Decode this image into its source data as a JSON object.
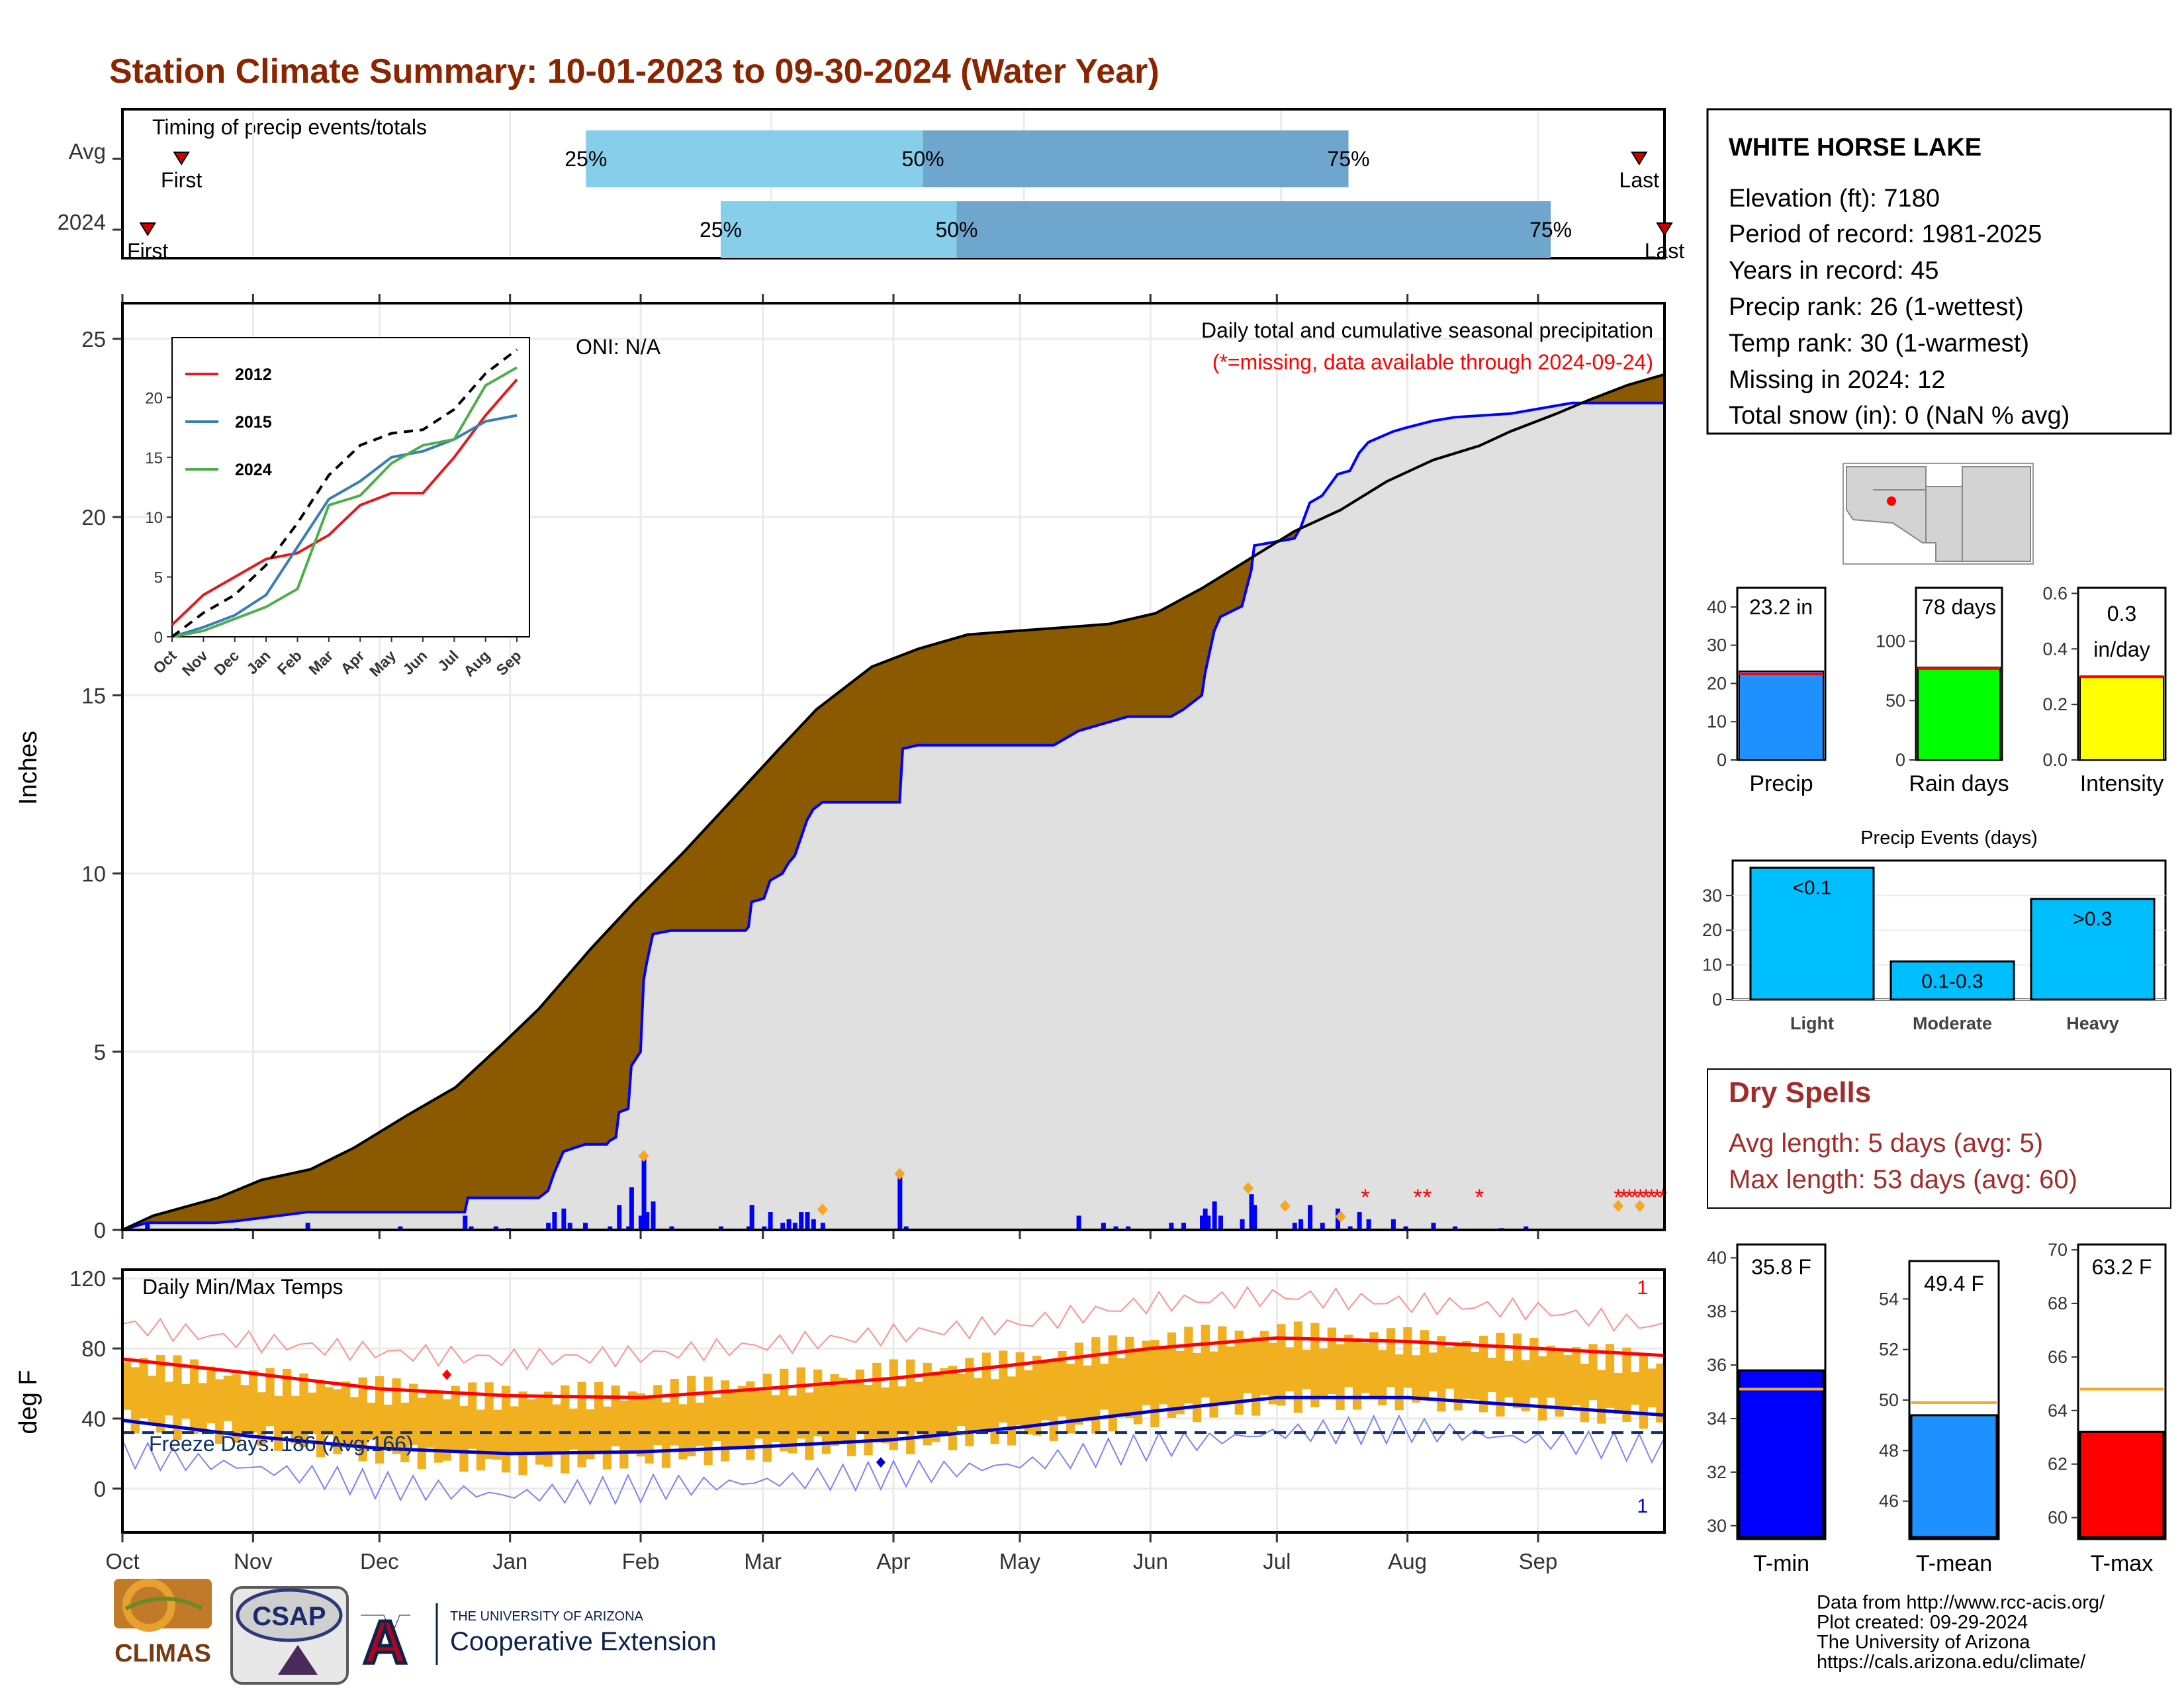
{
  "title": "Station Climate Summary: 10-01-2023 to 09-30-2024 (Water Year)",
  "colors": {
    "title": "#8B2500",
    "brown": "#8B5A00",
    "green": "#1a8c1a",
    "blue": "#0000ff",
    "missing": "#ff0000",
    "grey": "#e0e0e0",
    "orange": "#f0b020",
    "q1": "#87ceeb",
    "q2": "#6fa6cd"
  },
  "months": [
    "Oct",
    "Nov",
    "Dec",
    "Jan",
    "Feb",
    "Mar",
    "Apr",
    "May",
    "Jun",
    "Jul",
    "Aug",
    "Sep"
  ],
  "timing": {
    "label": "Timing of precip events/totals",
    "rows": [
      {
        "label": "Avg",
        "first_day": 14,
        "p25": 110,
        "p50": 190,
        "p75": 291,
        "last_day": 360
      },
      {
        "label": "2024",
        "first_day": 6,
        "p25": 142,
        "p50": 198,
        "p75": 339,
        "last_day": 366
      }
    ],
    "first_text": "First",
    "last_text": "Last",
    "pct_labels": [
      "25%",
      "50%",
      "75%"
    ]
  },
  "station": {
    "name": "WHITE HORSE LAKE",
    "lines": [
      "Elevation (ft): 7180",
      "Period of record: 1981-2025",
      "Years in record: 45",
      "Precip rank: 26 (1-wettest)",
      "Temp rank: 30 (1-warmest)",
      "Missing in 2024: 12",
      "Total snow (in): 0 (NaN % avg)"
    ]
  },
  "dry_spells": {
    "title": "Dry Spells",
    "avg": "Avg length: 5 days (avg: 5)",
    "max": "Max length: 53 days (avg: 60)"
  },
  "credits": {
    "lines": [
      "Data from http://www.rcc-acis.org/",
      "Plot created: 09-29-2024",
      "The University of Arizona",
      "https://cals.arizona.edu/climate/"
    ],
    "logo_climas": "CLIMAS",
    "logo_csap": "CSAP",
    "logo_ua_top": "THE UNIVERSITY OF ARIZONA",
    "logo_ua_bottom": "Cooperative Extension"
  },
  "chart_data": [
    {
      "id": "cumulative-precip",
      "type": "area",
      "title": "Daily total and cumulative seasonal precipitation",
      "subtitle": "(*=missing, data available through 2024-09-24)",
      "oni": "ONI: N/A",
      "ylabel": "Inches",
      "ylim": [
        0,
        26
      ],
      "yticks": [
        0,
        5,
        10,
        15,
        20,
        25
      ],
      "avg_cumulative": [
        [
          0,
          0
        ],
        [
          10,
          0.4
        ],
        [
          31,
          0.9
        ],
        [
          45,
          1.4
        ],
        [
          61,
          1.7
        ],
        [
          75,
          2.3
        ],
        [
          92,
          3.2
        ],
        [
          108,
          4.0
        ],
        [
          123,
          5.2
        ],
        [
          135,
          6.2
        ],
        [
          152,
          7.9
        ],
        [
          166,
          9.2
        ],
        [
          182,
          10.6
        ],
        [
          197,
          12.0
        ],
        [
          213,
          13.5
        ],
        [
          225,
          14.6
        ],
        [
          243,
          15.8
        ],
        [
          258,
          16.3
        ],
        [
          274,
          16.7
        ],
        [
          289,
          16.8
        ],
        [
          305,
          16.9
        ],
        [
          320,
          17.0
        ],
        [
          335,
          17.3
        ],
        [
          350,
          18.0
        ],
        [
          365,
          18.8
        ],
        [
          380,
          19.6
        ],
        [
          395,
          20.2
        ],
        [
          410,
          21.0
        ],
        [
          425,
          21.6
        ],
        [
          440,
          22.0
        ],
        [
          450,
          22.4
        ],
        [
          465,
          22.9
        ],
        [
          476,
          23.3
        ],
        [
          488,
          23.7
        ],
        [
          500,
          24.0
        ]
      ],
      "obs_cumulative": [
        [
          0,
          0
        ],
        [
          8,
          0.2
        ],
        [
          30,
          0.2
        ],
        [
          37,
          0.25
        ],
        [
          60,
          0.5
        ],
        [
          90,
          0.5
        ],
        [
          111,
          0.5
        ],
        [
          112,
          0.9
        ],
        [
          135,
          0.9
        ],
        [
          138,
          1.1
        ],
        [
          140,
          1.6
        ],
        [
          143,
          2.2
        ],
        [
          150,
          2.4
        ],
        [
          157,
          2.4
        ],
        [
          158,
          2.5
        ],
        [
          160,
          2.6
        ],
        [
          161,
          3.3
        ],
        [
          164,
          3.4
        ],
        [
          165,
          4.6
        ],
        [
          168,
          5.0
        ],
        [
          169,
          7.0
        ],
        [
          170,
          7.5
        ],
        [
          172,
          8.3
        ],
        [
          178,
          8.4
        ],
        [
          191,
          8.4
        ],
        [
          202,
          8.4
        ],
        [
          203,
          8.5
        ],
        [
          204,
          9.2
        ],
        [
          208,
          9.3
        ],
        [
          210,
          9.8
        ],
        [
          214,
          10.0
        ],
        [
          216,
          10.3
        ],
        [
          218,
          10.5
        ],
        [
          220,
          11.0
        ],
        [
          222,
          11.5
        ],
        [
          224,
          11.8
        ],
        [
          227,
          12.0
        ],
        [
          252,
          12.0
        ],
        [
          253,
          13.5
        ],
        [
          258,
          13.6
        ],
        [
          302,
          13.6
        ],
        [
          310,
          14.0
        ],
        [
          318,
          14.2
        ],
        [
          322,
          14.3
        ],
        [
          326,
          14.4
        ],
        [
          340,
          14.4
        ],
        [
          344,
          14.6
        ],
        [
          350,
          15.0
        ],
        [
          351,
          15.6
        ],
        [
          352,
          16.0
        ],
        [
          354,
          16.8
        ],
        [
          356,
          17.2
        ],
        [
          363,
          17.5
        ],
        [
          366,
          18.5
        ],
        [
          367,
          19.2
        ],
        [
          380,
          19.4
        ],
        [
          382,
          19.7
        ],
        [
          385,
          20.4
        ],
        [
          389,
          20.6
        ],
        [
          394,
          21.2
        ],
        [
          398,
          21.3
        ],
        [
          401,
          21.8
        ],
        [
          404,
          22.1
        ],
        [
          412,
          22.4
        ],
        [
          416,
          22.5
        ],
        [
          425,
          22.7
        ],
        [
          432,
          22.8
        ],
        [
          450,
          22.9
        ],
        [
          470,
          23.2
        ],
        [
          500,
          23.2
        ],
        [
          500,
          22.9
        ]
      ],
      "daily_precip": [
        [
          8,
          0.2
        ],
        [
          37,
          0.05
        ],
        [
          60,
          0.2
        ],
        [
          90,
          0.1
        ],
        [
          111,
          0.4
        ],
        [
          113,
          0.1
        ],
        [
          121,
          0.1
        ],
        [
          125,
          0.05
        ],
        [
          138,
          0.2
        ],
        [
          140,
          0.5
        ],
        [
          143,
          0.6
        ],
        [
          145,
          0.2
        ],
        [
          150,
          0.2
        ],
        [
          158,
          0.1
        ],
        [
          161,
          0.7
        ],
        [
          164,
          0.1
        ],
        [
          165,
          1.2
        ],
        [
          168,
          0.4
        ],
        [
          169,
          2.0
        ],
        [
          170,
          0.5
        ],
        [
          172,
          0.8
        ],
        [
          178,
          0.1
        ],
        [
          194,
          0.1
        ],
        [
          203,
          0.1
        ],
        [
          204,
          0.7
        ],
        [
          208,
          0.1
        ],
        [
          210,
          0.5
        ],
        [
          214,
          0.2
        ],
        [
          216,
          0.3
        ],
        [
          218,
          0.2
        ],
        [
          220,
          0.5
        ],
        [
          222,
          0.5
        ],
        [
          224,
          0.3
        ],
        [
          227,
          0.2
        ],
        [
          252,
          1.5
        ],
        [
          254,
          0.1
        ],
        [
          310,
          0.4
        ],
        [
          318,
          0.2
        ],
        [
          322,
          0.1
        ],
        [
          326,
          0.1
        ],
        [
          340,
          0.2
        ],
        [
          344,
          0.2
        ],
        [
          350,
          0.4
        ],
        [
          351,
          0.6
        ],
        [
          352,
          0.4
        ],
        [
          354,
          0.8
        ],
        [
          356,
          0.4
        ],
        [
          363,
          0.3
        ],
        [
          366,
          1.0
        ],
        [
          367,
          0.7
        ],
        [
          380,
          0.2
        ],
        [
          382,
          0.3
        ],
        [
          385,
          0.7
        ],
        [
          389,
          0.2
        ],
        [
          394,
          0.6
        ],
        [
          398,
          0.1
        ],
        [
          401,
          0.5
        ],
        [
          404,
          0.3
        ],
        [
          412,
          0.3
        ],
        [
          416,
          0.1
        ],
        [
          425,
          0.2
        ],
        [
          432,
          0.1
        ],
        [
          447,
          0.05
        ],
        [
          455,
          0.1
        ]
      ],
      "inset": {
        "type": "line",
        "xlabels": [
          "Oct",
          "Nov",
          "Dec",
          "Jan",
          "Feb",
          "Mar",
          "Apr",
          "May",
          "Jun",
          "Jul",
          "Aug",
          "Sep"
        ],
        "ylim": [
          0,
          25
        ],
        "yticks": [
          0,
          5,
          10,
          15,
          20
        ],
        "series": [
          {
            "name": "2012",
            "color": "#e41a1c",
            "values": [
              1,
              3.5,
              5,
              6.5,
              7,
              8.5,
              11,
              12,
              12,
              15,
              18.5,
              21.5
            ]
          },
          {
            "name": "2015",
            "color": "#377eb8",
            "values": [
              0,
              0.8,
              1.8,
              3.5,
              7.5,
              11.5,
              13,
              15,
              15.5,
              16.5,
              18,
              18.5
            ]
          },
          {
            "name": "2024",
            "color": "#4daf4a",
            "values": [
              0,
              0.5,
              1.5,
              2.5,
              4,
              11,
              11.8,
              14.5,
              16,
              16.5,
              21,
              22.5
            ]
          },
          {
            "name": "avg",
            "color": "#000000",
            "values": [
              0,
              2,
              3.5,
              6,
              9.5,
              13.5,
              16,
              17,
              17.3,
              19,
              22,
              24
            ]
          }
        ]
      }
    },
    {
      "id": "temperature",
      "type": "line",
      "title": "Daily Min/Max Temps",
      "ylabel": "deg F",
      "ylim": [
        -25,
        125
      ],
      "yticks": [
        0,
        40,
        80,
        120
      ],
      "freeze_label": "Freeze Days: 186 (Avg:166)",
      "freeze_line": 32,
      "record_count_top": "1",
      "record_count_bottom": "1",
      "avg_max": [
        [
          0,
          74
        ],
        [
          30,
          66
        ],
        [
          61,
          57
        ],
        [
          92,
          53
        ],
        [
          123,
          52
        ],
        [
          152,
          57
        ],
        [
          183,
          63
        ],
        [
          213,
          71
        ],
        [
          244,
          80
        ],
        [
          274,
          86
        ],
        [
          305,
          84
        ],
        [
          336,
          80
        ],
        [
          366,
          76
        ]
      ],
      "avg_min": [
        [
          0,
          39
        ],
        [
          30,
          30
        ],
        [
          61,
          23
        ],
        [
          92,
          20
        ],
        [
          123,
          21
        ],
        [
          152,
          24
        ],
        [
          183,
          28
        ],
        [
          213,
          35
        ],
        [
          244,
          44
        ],
        [
          274,
          52
        ],
        [
          305,
          52
        ],
        [
          336,
          47
        ],
        [
          366,
          42
        ]
      ],
      "obs_max_monthly": [
        72,
        62,
        56,
        52,
        54,
        60,
        66,
        72,
        84,
        88,
        84,
        80,
        70
      ],
      "obs_min_monthly": [
        38,
        30,
        20,
        14,
        18,
        22,
        26,
        32,
        42,
        50,
        52,
        46,
        40
      ]
    },
    {
      "id": "precip-totals",
      "type": "bar",
      "categories": [
        "Precip",
        "Rain days",
        "Intensity"
      ],
      "labels": [
        "23.2 in",
        "78 days",
        "0.3",
        "in/day"
      ],
      "values": [
        23.2,
        78,
        0.3
      ],
      "averages": [
        22.5,
        77,
        0.3
      ],
      "ylims": [
        [
          0,
          45
        ],
        [
          0,
          145
        ],
        [
          0,
          0.62
        ]
      ],
      "yticks": [
        [
          "0",
          "10",
          "20",
          "30",
          "40"
        ],
        [
          "0",
          "50",
          "100"
        ],
        [
          "0.0",
          "0.2",
          "0.4",
          "0.6"
        ]
      ],
      "colors": [
        "#1e90ff",
        "#00ff00",
        "#ffff00"
      ]
    },
    {
      "id": "precip-events",
      "type": "bar",
      "title": "Precip Events (days)",
      "categories": [
        "Light",
        "Moderate",
        "Heavy"
      ],
      "bar_labels": [
        "<0.1",
        "0.1-0.3",
        ">0.3"
      ],
      "values": [
        38,
        11,
        29
      ],
      "ylim": [
        0,
        42
      ],
      "yticks": [
        0,
        10,
        20,
        30
      ],
      "color": "#00bfff"
    },
    {
      "id": "temp-summary",
      "type": "bar",
      "categories": [
        "T-min",
        "T-mean",
        "T-max"
      ],
      "labels": [
        "35.8 F",
        "49.4 F",
        "63.2 F"
      ],
      "values": [
        35.8,
        49.4,
        63.2
      ],
      "averages": [
        35.1,
        49.9,
        64.8
      ],
      "ylims": [
        [
          29.5,
          40.5
        ],
        [
          44.5,
          55.5
        ],
        [
          59.2,
          70.2
        ]
      ],
      "yticks": [
        [
          "30",
          "32",
          "34",
          "36",
          "38",
          "40"
        ],
        [
          "46",
          "48",
          "50",
          "52",
          "54"
        ],
        [
          "60",
          "62",
          "64",
          "66",
          "68",
          "70"
        ]
      ],
      "colors": [
        "#0000ff",
        "#1e90ff",
        "#ff0000"
      ]
    }
  ]
}
